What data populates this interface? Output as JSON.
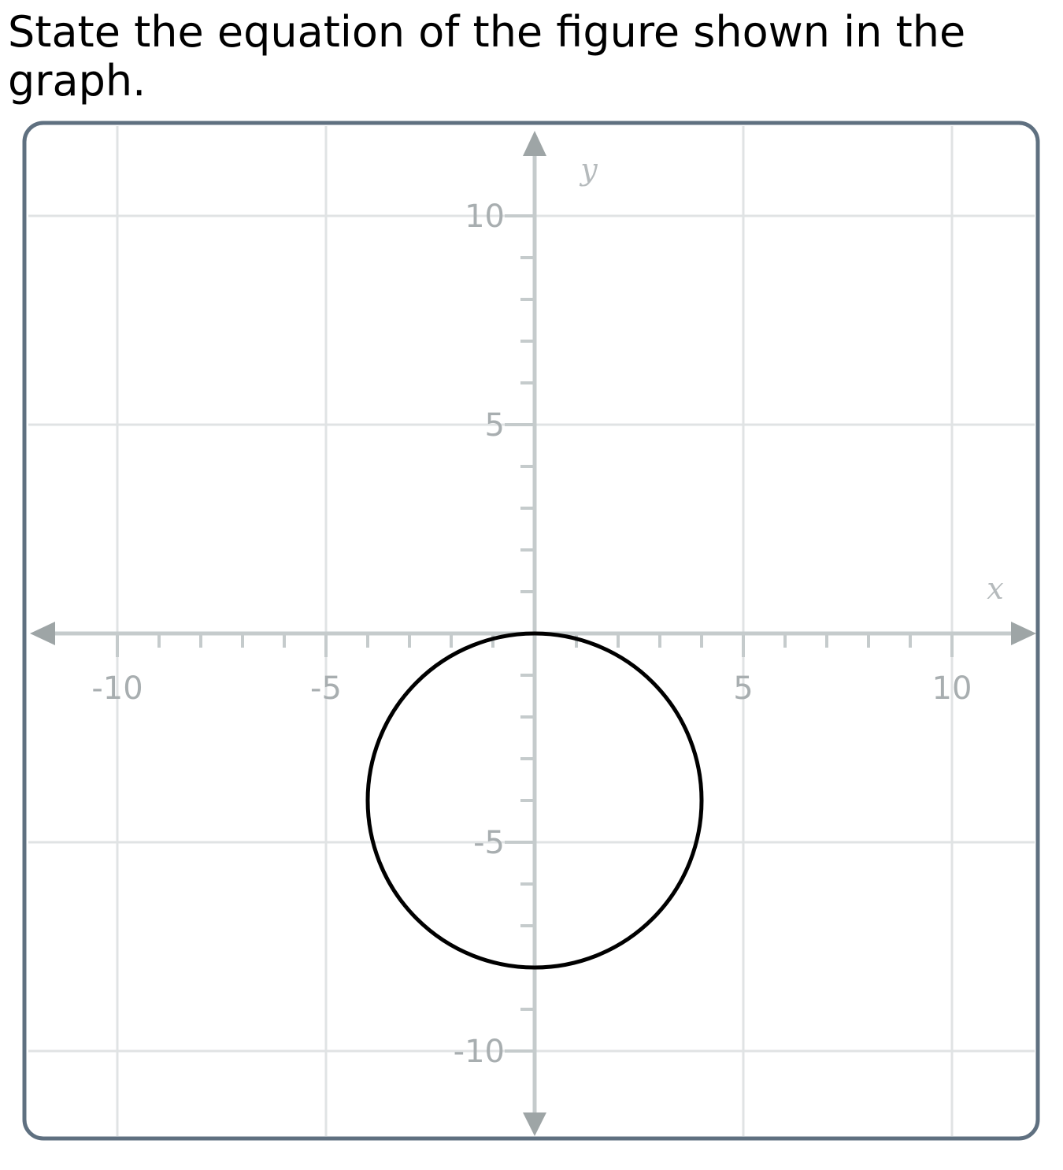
{
  "question": {
    "text": "State the equation of the figure shown in the graph."
  },
  "chart_data": {
    "type": "scatter",
    "title": "",
    "xlabel": "x",
    "ylabel": "y",
    "xlim": [
      -10,
      12
    ],
    "ylim": [
      -12,
      10
    ],
    "x_ticks": [
      -10,
      -5,
      5,
      10
    ],
    "y_ticks": [
      10,
      5,
      -5,
      -10
    ],
    "x_tick_labels": [
      "-10",
      "-5",
      "5",
      "10"
    ],
    "y_tick_labels": [
      "10",
      "5",
      "-5",
      "-10"
    ],
    "minor_tick_step": 1,
    "grid": true,
    "grid_step": 5,
    "figure": {
      "shape": "circle",
      "center": [
        0,
        -4
      ],
      "radius": 4
    },
    "colors": {
      "frame": "#5f7080",
      "grid": "#e0e3e4",
      "axis": "#c5cbcc",
      "arrow": "#9ea5a6",
      "curve": "#000000"
    }
  }
}
